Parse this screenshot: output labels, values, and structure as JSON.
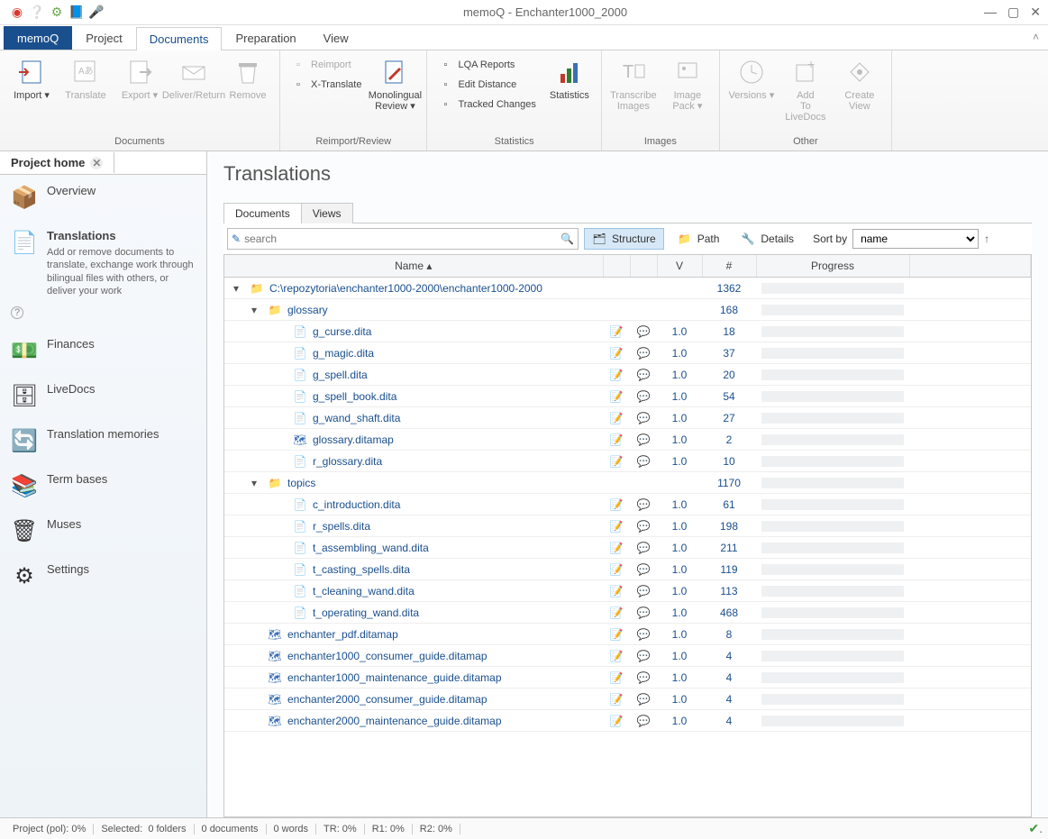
{
  "window": {
    "title": "memoQ - Enchanter1000_2000"
  },
  "ribbonTabs": {
    "app": "memoQ",
    "items": [
      "Project",
      "Documents",
      "Preparation",
      "View"
    ],
    "active": "Documents"
  },
  "ribbon": {
    "groups": [
      {
        "label": "Documents",
        "big": [
          {
            "key": "import",
            "label": "Import",
            "drop": true
          },
          {
            "key": "translate",
            "label": "Translate",
            "disabled": true
          },
          {
            "key": "export",
            "label": "Export",
            "drop": true,
            "disabled": true
          },
          {
            "key": "deliver",
            "label": "Deliver/Return",
            "disabled": true
          },
          {
            "key": "remove",
            "label": "Remove",
            "disabled": true
          }
        ]
      },
      {
        "label": "Reimport/Review",
        "big": [
          {
            "key": "monoreview",
            "label": "Monolingual Review",
            "drop": true
          }
        ],
        "small": [
          {
            "key": "reimport",
            "label": "Reimport",
            "disabled": true
          },
          {
            "key": "xtranslate",
            "label": "X-Translate"
          }
        ]
      },
      {
        "label": "Statistics",
        "big": [
          {
            "key": "statistics",
            "label": "Statistics"
          }
        ],
        "small": [
          {
            "key": "lqa",
            "label": "LQA Reports"
          },
          {
            "key": "editdist",
            "label": "Edit Distance"
          },
          {
            "key": "tracked",
            "label": "Tracked Changes"
          }
        ]
      },
      {
        "label": "Images",
        "big": [
          {
            "key": "transcribe",
            "label": "Transcribe Images",
            "disabled": true
          },
          {
            "key": "imagepack",
            "label": "Image Pack",
            "drop": true,
            "disabled": true
          }
        ]
      },
      {
        "label": "Other",
        "big": [
          {
            "key": "versions",
            "label": "Versions",
            "drop": true,
            "disabled": true
          },
          {
            "key": "addlive",
            "label": "Add To LiveDocs",
            "disabled": true
          },
          {
            "key": "createview",
            "label": "Create View",
            "disabled": true
          }
        ]
      }
    ]
  },
  "projectHome": {
    "tabLabel": "Project home",
    "items": [
      {
        "key": "overview",
        "label": "Overview"
      },
      {
        "key": "translations",
        "label": "Translations",
        "active": true,
        "desc": "Add or remove documents to translate, exchange work through bilingual files with others, or deliver your work"
      },
      {
        "key": "finances",
        "label": "Finances"
      },
      {
        "key": "livedocs",
        "label": "LiveDocs"
      },
      {
        "key": "tm",
        "label": "Translation memories"
      },
      {
        "key": "tb",
        "label": "Term bases"
      },
      {
        "key": "muses",
        "label": "Muses"
      },
      {
        "key": "settings",
        "label": "Settings"
      }
    ]
  },
  "translations": {
    "heading": "Translations",
    "tabs": {
      "documents": "Documents",
      "views": "Views",
      "active": "documents"
    },
    "search": {
      "placeholder": "search"
    },
    "toolbarButtons": {
      "structure": "Structure",
      "path": "Path",
      "details": "Details"
    },
    "sort": {
      "label": "Sort by",
      "value": "name"
    },
    "columns": {
      "name": "Name",
      "v": "V",
      "count": "#",
      "progress": "Progress"
    },
    "rows": [
      {
        "type": "folder",
        "indent": 0,
        "name": "C:\\repozytoria\\enchanter1000-2000\\enchanter1000-2000",
        "count": 1362
      },
      {
        "type": "folder",
        "indent": 1,
        "name": "glossary",
        "count": 168
      },
      {
        "type": "file",
        "indent": 2,
        "name": "g_curse.dita",
        "v": "1.0",
        "count": 18
      },
      {
        "type": "file",
        "indent": 2,
        "name": "g_magic.dita",
        "v": "1.0",
        "count": 37
      },
      {
        "type": "file",
        "indent": 2,
        "name": "g_spell.dita",
        "v": "1.0",
        "count": 20
      },
      {
        "type": "file",
        "indent": 2,
        "name": "g_spell_book.dita",
        "v": "1.0",
        "count": 54
      },
      {
        "type": "file",
        "indent": 2,
        "name": "g_wand_shaft.dita",
        "v": "1.0",
        "count": 27
      },
      {
        "type": "map",
        "indent": 2,
        "name": "glossary.ditamap",
        "v": "1.0",
        "count": 2
      },
      {
        "type": "file",
        "indent": 2,
        "name": "r_glossary.dita",
        "v": "1.0",
        "count": 10
      },
      {
        "type": "folder",
        "indent": 1,
        "name": "topics",
        "count": 1170
      },
      {
        "type": "file",
        "indent": 2,
        "name": "c_introduction.dita",
        "v": "1.0",
        "count": 61
      },
      {
        "type": "file",
        "indent": 2,
        "name": "r_spells.dita",
        "v": "1.0",
        "count": 198
      },
      {
        "type": "file",
        "indent": 2,
        "name": "t_assembling_wand.dita",
        "v": "1.0",
        "count": 211
      },
      {
        "type": "file",
        "indent": 2,
        "name": "t_casting_spells.dita",
        "v": "1.0",
        "count": 119
      },
      {
        "type": "file",
        "indent": 2,
        "name": "t_cleaning_wand.dita",
        "v": "1.0",
        "count": 113
      },
      {
        "type": "file",
        "indent": 2,
        "name": "t_operating_wand.dita",
        "v": "1.0",
        "count": 468
      },
      {
        "type": "map",
        "indent": 1,
        "name": "enchanter_pdf.ditamap",
        "v": "1.0",
        "count": 8
      },
      {
        "type": "map",
        "indent": 1,
        "name": "enchanter1000_consumer_guide.ditamap",
        "v": "1.0",
        "count": 4
      },
      {
        "type": "map",
        "indent": 1,
        "name": "enchanter1000_maintenance_guide.ditamap",
        "v": "1.0",
        "count": 4
      },
      {
        "type": "map",
        "indent": 1,
        "name": "enchanter2000_consumer_guide.ditamap",
        "v": "1.0",
        "count": 4
      },
      {
        "type": "map",
        "indent": 1,
        "name": "enchanter2000_maintenance_guide.ditamap",
        "v": "1.0",
        "count": 4
      }
    ]
  },
  "status": {
    "project": "Project (pol): 0%",
    "selected": "Selected:",
    "folders": "0 folders",
    "docs": "0 documents",
    "words": "0 words",
    "tr": "TR: 0%",
    "r1": "R1: 0%",
    "r2": "R2: 0%"
  },
  "colors": {
    "link": "#1a4f8e",
    "accent": "#d6e8f7"
  }
}
